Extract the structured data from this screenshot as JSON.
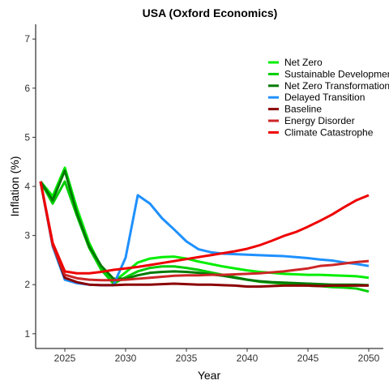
{
  "chart_data": {
    "type": "line",
    "title": "USA (Oxford Economics)",
    "xlabel": "Year",
    "ylabel": "Inflation (%)",
    "xlim": [
      2022.6,
      2051.2
    ],
    "ylim": [
      0.7,
      7.3
    ],
    "xticks": [
      2025,
      2030,
      2035,
      2040,
      2045,
      2050
    ],
    "yticks": [
      1,
      2,
      3,
      4,
      5,
      6,
      7
    ],
    "grid": false,
    "legend_position": "top-right",
    "x": [
      2023,
      2024,
      2025,
      2026,
      2027,
      2028,
      2029,
      2030,
      2031,
      2032,
      2033,
      2034,
      2035,
      2036,
      2037,
      2038,
      2039,
      2040,
      2041,
      2042,
      2043,
      2044,
      2045,
      2046,
      2047,
      2048,
      2049,
      2050
    ],
    "series": [
      {
        "name": "Net Zero",
        "color": "#00ee00",
        "values": [
          4.1,
          3.8,
          4.38,
          3.55,
          2.85,
          2.35,
          2.05,
          2.25,
          2.45,
          2.53,
          2.56,
          2.57,
          2.53,
          2.47,
          2.42,
          2.37,
          2.33,
          2.29,
          2.26,
          2.24,
          2.22,
          2.21,
          2.2,
          2.2,
          2.19,
          2.18,
          2.17,
          2.14
        ]
      },
      {
        "name": "Sustainable Development",
        "color": "#00cd00",
        "values": [
          4.1,
          3.65,
          4.1,
          3.4,
          2.75,
          2.3,
          2.02,
          2.15,
          2.27,
          2.34,
          2.37,
          2.37,
          2.34,
          2.3,
          2.25,
          2.2,
          2.15,
          2.1,
          2.06,
          2.04,
          2.02,
          2.0,
          1.98,
          1.97,
          1.95,
          1.94,
          1.92,
          1.86
        ]
      },
      {
        "name": "Net Zero Transformation",
        "color": "#007a00",
        "values": [
          4.1,
          3.72,
          4.32,
          3.45,
          2.78,
          2.38,
          2.12,
          2.12,
          2.19,
          2.24,
          2.26,
          2.27,
          2.26,
          2.24,
          2.21,
          2.18,
          2.14,
          2.1,
          2.07,
          2.05,
          2.04,
          2.03,
          2.02,
          2.01,
          2.0,
          2.0,
          2.0,
          1.99
        ]
      },
      {
        "name": "Delayed Transition",
        "color": "#1e90ff",
        "values": [
          4.1,
          2.78,
          2.1,
          2.03,
          2.0,
          1.99,
          1.99,
          2.55,
          3.82,
          3.65,
          3.35,
          3.12,
          2.88,
          2.72,
          2.66,
          2.63,
          2.62,
          2.61,
          2.6,
          2.59,
          2.58,
          2.56,
          2.54,
          2.51,
          2.49,
          2.45,
          2.42,
          2.38
        ]
      },
      {
        "name": "Baseline",
        "color": "#8b0000",
        "values": [
          4.1,
          2.82,
          2.14,
          2.05,
          2.0,
          1.99,
          1.99,
          2.0,
          2.0,
          2.0,
          2.01,
          2.02,
          2.01,
          2.0,
          2.0,
          1.99,
          1.98,
          1.96,
          1.96,
          1.97,
          1.98,
          1.98,
          1.98,
          1.97,
          1.98,
          1.98,
          1.98,
          1.98
        ]
      },
      {
        "name": "Energy Disorder",
        "color": "#cd2626",
        "values": [
          4.1,
          2.8,
          2.2,
          2.13,
          2.1,
          2.09,
          2.09,
          2.1,
          2.12,
          2.14,
          2.16,
          2.18,
          2.19,
          2.19,
          2.2,
          2.2,
          2.21,
          2.22,
          2.23,
          2.25,
          2.27,
          2.3,
          2.33,
          2.38,
          2.4,
          2.43,
          2.46,
          2.48
        ]
      },
      {
        "name": "Climate Catastrophe",
        "color": "#ee0000",
        "values": [
          4.1,
          2.85,
          2.27,
          2.23,
          2.23,
          2.26,
          2.3,
          2.33,
          2.36,
          2.4,
          2.44,
          2.48,
          2.52,
          2.56,
          2.6,
          2.64,
          2.68,
          2.73,
          2.8,
          2.89,
          2.99,
          3.07,
          3.18,
          3.3,
          3.43,
          3.58,
          3.72,
          3.82
        ]
      }
    ]
  }
}
